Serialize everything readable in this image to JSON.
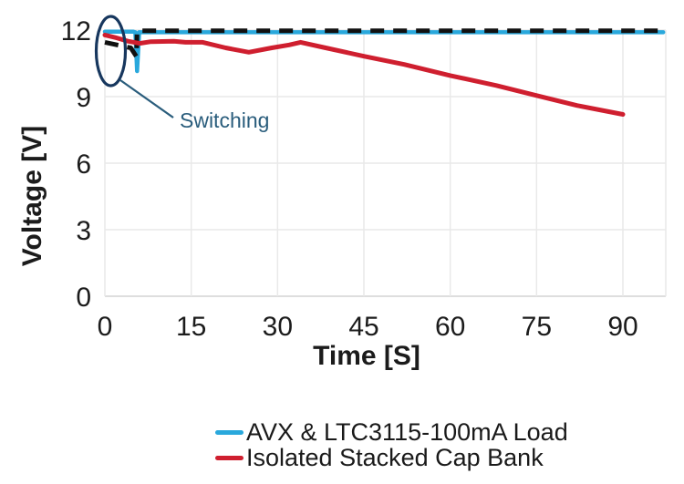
{
  "chart_data": {
    "type": "line",
    "title": "",
    "xlabel": "Time [S]",
    "ylabel": "Voltage [V]",
    "xlim": [
      0,
      95
    ],
    "ylim": [
      0,
      12
    ],
    "x_ticks": [
      0,
      15,
      30,
      45,
      60,
      75,
      90
    ],
    "y_ticks": [
      0,
      3,
      6,
      9,
      12
    ],
    "grid": true,
    "grid_color": "#e9e9e9",
    "axis_line_color": "#d4d4d4",
    "tick_label_color": "#1c1c1c",
    "legend_position": "bottom-center",
    "series": [
      {
        "label": "AVX & LTC3115-100mA Load",
        "color": "#29a8dc",
        "dash": "",
        "width": 4.5,
        "points": [
          [
            0,
            11.93
          ],
          [
            4.9,
            11.93
          ],
          [
            5.3,
            11.9
          ],
          [
            5.6,
            10.15
          ],
          [
            5.95,
            11.9
          ],
          [
            10,
            11.9
          ],
          [
            97,
            11.9
          ]
        ]
      },
      {
        "label": "Isolated Stacked Cap Bank",
        "color": "#cf1f2f",
        "dash": "",
        "width": 5,
        "points": [
          [
            0,
            11.78
          ],
          [
            2,
            11.65
          ],
          [
            4,
            11.5
          ],
          [
            6,
            11.4
          ],
          [
            8,
            11.48
          ],
          [
            12,
            11.5
          ],
          [
            14,
            11.45
          ],
          [
            17,
            11.45
          ],
          [
            21,
            11.2
          ],
          [
            25,
            11.0
          ],
          [
            29,
            11.2
          ],
          [
            32,
            11.33
          ],
          [
            34,
            11.45
          ],
          [
            38,
            11.22
          ],
          [
            45,
            10.82
          ],
          [
            52,
            10.45
          ],
          [
            60,
            9.95
          ],
          [
            68,
            9.5
          ],
          [
            75,
            9.05
          ],
          [
            82,
            8.6
          ],
          [
            90,
            8.2
          ]
        ]
      },
      {
        "label": null,
        "color": "#111111",
        "dash": "15 10",
        "width": 5,
        "points": [
          [
            0,
            11.45
          ],
          [
            4.5,
            11.2
          ],
          [
            5.5,
            10.8
          ],
          [
            5.6,
            11.97
          ],
          [
            97,
            11.97
          ]
        ]
      }
    ],
    "annotation": {
      "text": "Switching",
      "text_color": "#2a5d7c",
      "line_color": "#2a5d7c",
      "ellipse_color": "#17375e"
    }
  }
}
